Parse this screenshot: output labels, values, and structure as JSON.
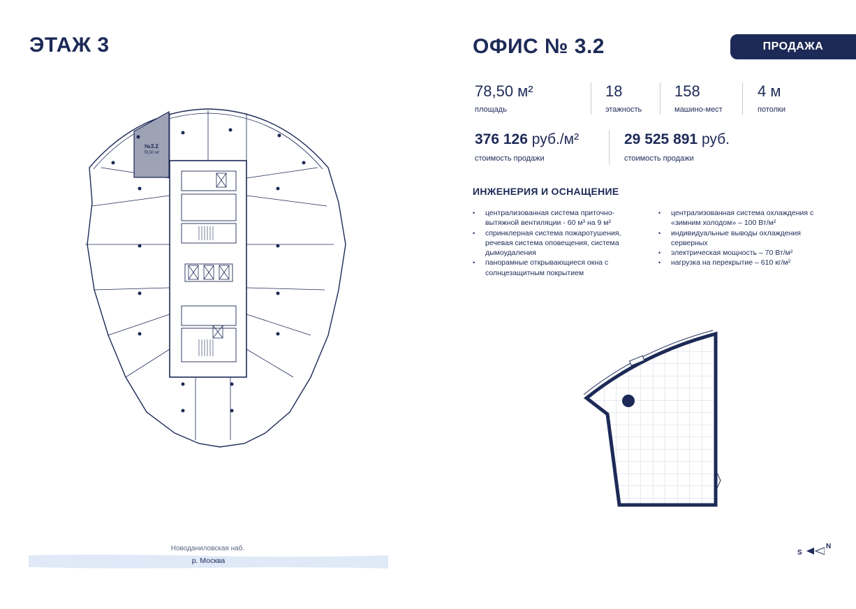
{
  "floor_title": "ЭТАЖ 3",
  "office_title": "ОФИС № 3.2",
  "badge": "ПРОДАЖА",
  "stats": [
    {
      "value": "78,50 м²",
      "label": "площадь"
    },
    {
      "value": "18",
      "label": "этажность"
    },
    {
      "value": "158",
      "label": "машино-мест"
    },
    {
      "value": "4 м",
      "label": "потолки"
    }
  ],
  "prices": [
    {
      "amount": "376 126",
      "unit": "руб./м²",
      "label": "стоимость продажи"
    },
    {
      "amount": "29 525 891",
      "unit": "руб.",
      "label": "стоимость продажи"
    }
  ],
  "engineering": {
    "title": "ИНЖЕНЕРИЯ И ОСНАЩЕНИЕ",
    "col1": [
      "централизованная система приточно-вытяжной вентиляции - 60 м³ на 9 м²",
      "спринклерная система пожаротушения, речевая система оповещения, система дымоудаления",
      "панорамные открывающиеся окна с солнцезащитным покрытием"
    ],
    "col2": [
      "централизованная система охлаждения с «зимним холодом» – 100 Вт/м²",
      "индивидуальные выводы охлаждения серверных",
      "электрическая мощность – 70 Вт/м²",
      "нагрузка на перекрытие – 610 кг/м²"
    ]
  },
  "plan": {
    "unit_label": "№3.2",
    "unit_area": "78,50 м²",
    "highlight_color": "#9ea2b5"
  },
  "map": {
    "street": "Новоданиловская наб.",
    "river": "р. Москва"
  },
  "compass": {
    "s": "S",
    "n": "N"
  },
  "colors": {
    "navy": "#1d2a57",
    "river": "#dfe9f7"
  }
}
